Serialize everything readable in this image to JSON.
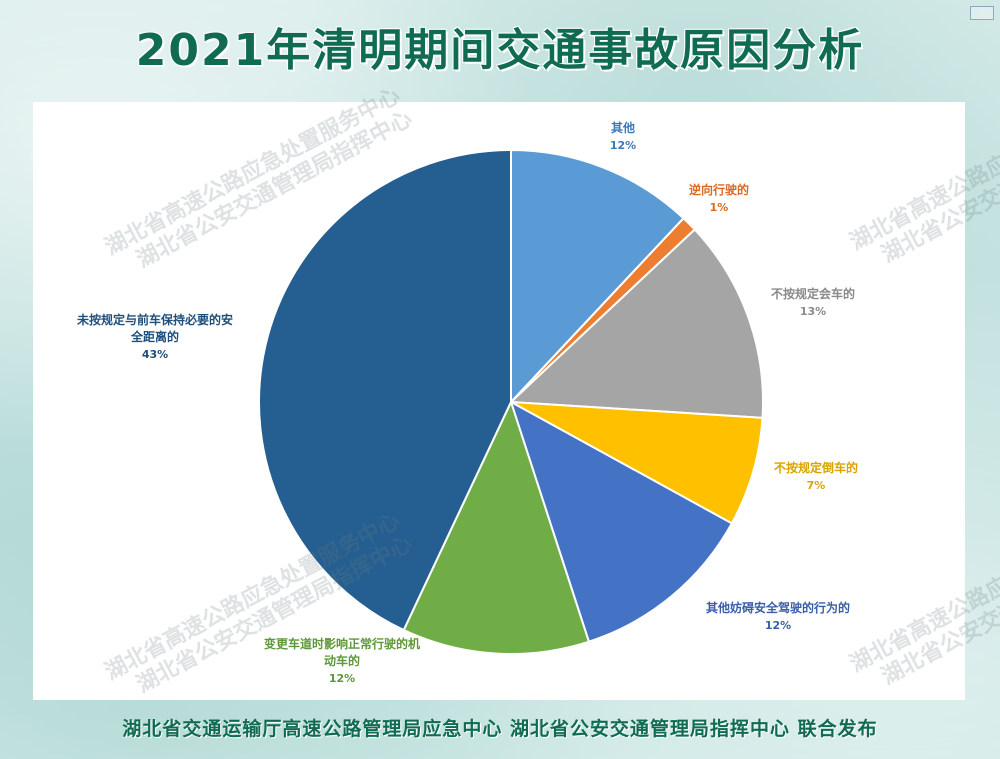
{
  "page": {
    "title": "2021年清明期间交通事故原因分析",
    "footer": "湖北省交通运输厅高速公路管理局应急中心  湖北省公安交通管理局指挥中心   联合发布"
  },
  "watermark": {
    "line1": "湖北省高速公路应急处置服务中心",
    "line2": "湖北省公安交通管理局指挥中心"
  },
  "colors": {
    "title": "#0f6b52",
    "footer": "#0f6b52",
    "slice_border": "#ffffff"
  },
  "chart_data": {
    "type": "pie",
    "title": "",
    "start_angle_deg": 0,
    "direction": "clockwise",
    "slices": [
      {
        "label": "其他",
        "value": 12,
        "value_label": "12%",
        "color": "#5b9bd5",
        "label_color": "#3f78b8"
      },
      {
        "label": "逆向行驶的",
        "value": 1,
        "value_label": "1%",
        "color": "#ed7d31",
        "label_color": "#d86a22"
      },
      {
        "label": "不按规定会车的",
        "value": 13,
        "value_label": "13%",
        "color": "#a5a5a5",
        "label_color": "#8a8a8a"
      },
      {
        "label": "不按规定倒车的",
        "value": 7,
        "value_label": "7%",
        "color": "#ffc000",
        "label_color": "#d9a300"
      },
      {
        "label": "其他妨碍安全驾驶的行为的",
        "value": 12,
        "value_label": "12%",
        "color": "#4472c4",
        "label_color": "#3a5fa8"
      },
      {
        "label": "变更车道时影响正常行驶的机动车的",
        "label_lines": [
          "变更车道时影响正常行驶的机",
          "动车的"
        ],
        "value": 12,
        "value_label": "12%",
        "color": "#70ad47",
        "label_color": "#5e9838"
      },
      {
        "label": "未按规定与前车保持必要的安全距离的",
        "label_lines": [
          "未按规定与前车保持必要的安",
          "全距离的"
        ],
        "value": 43,
        "value_label": "43%",
        "color": "#255e91",
        "label_color": "#1f4f7c"
      }
    ]
  }
}
